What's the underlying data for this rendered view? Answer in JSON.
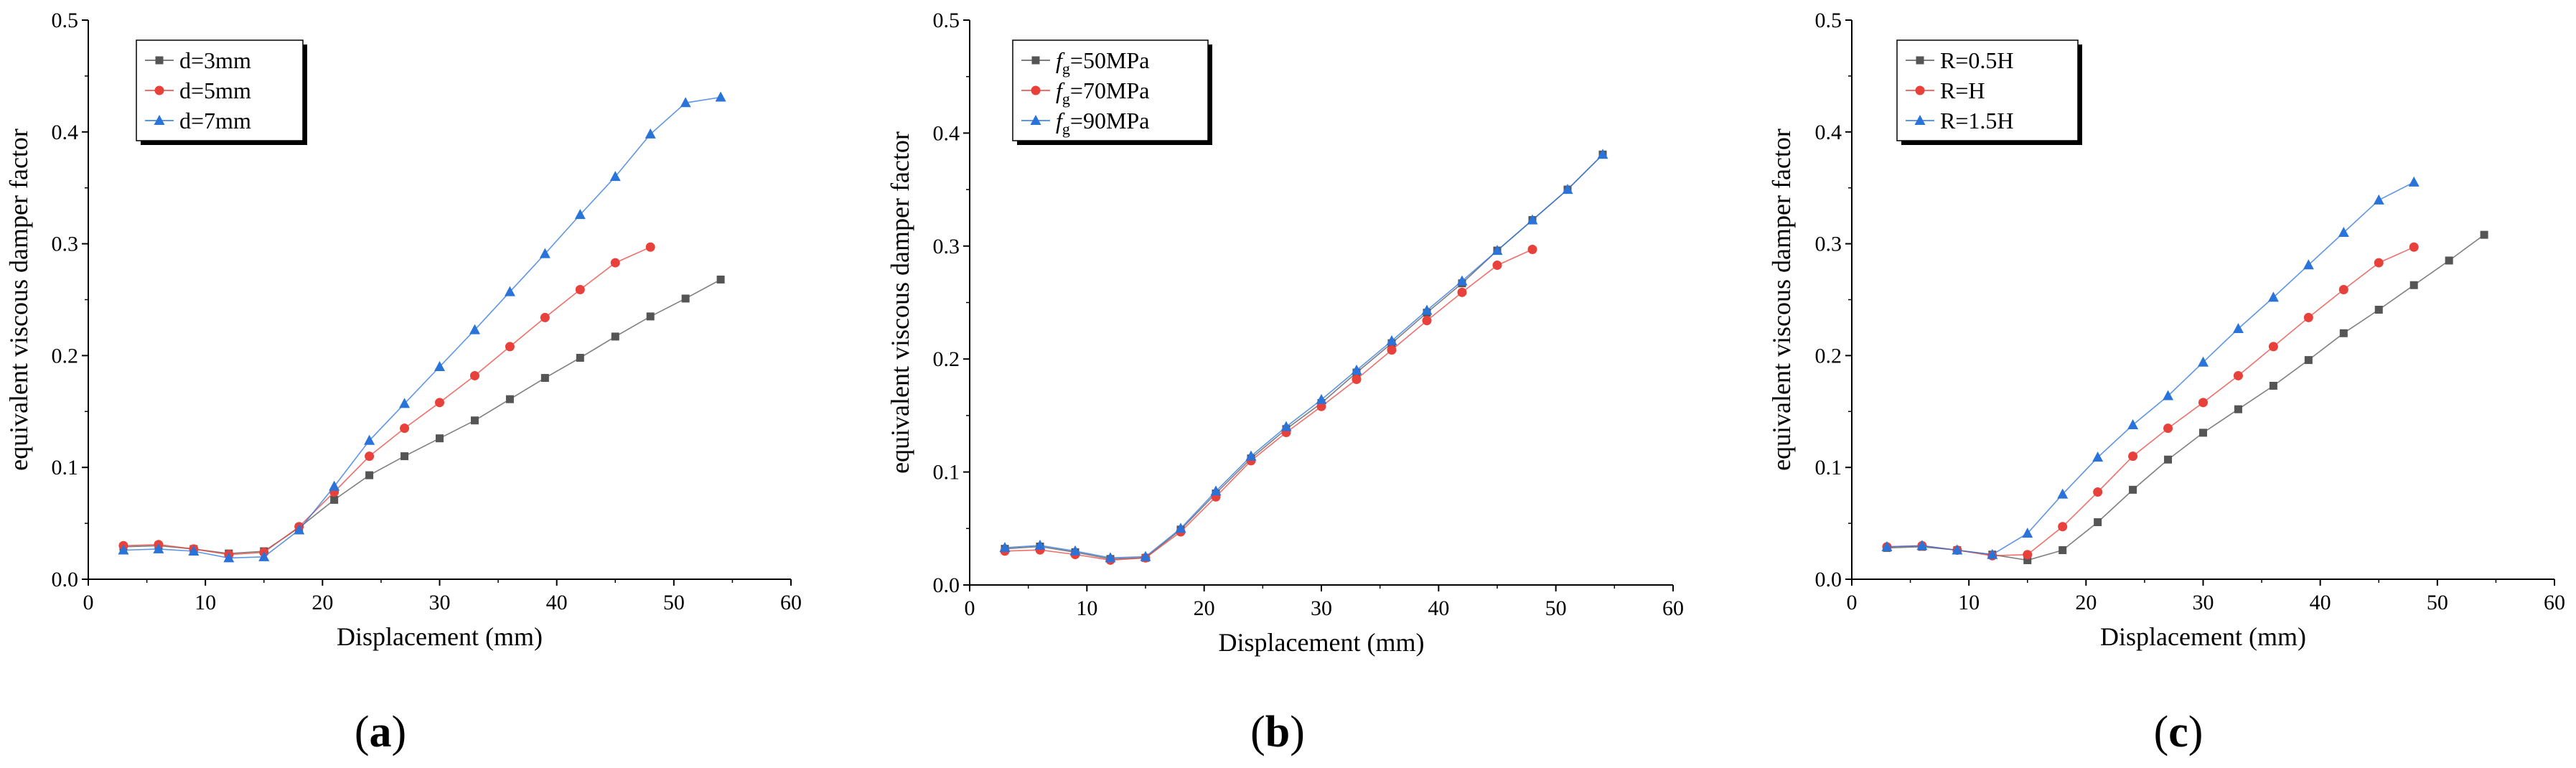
{
  "colors": {
    "black_series": "#555555",
    "red_series": "#e8413c",
    "blue_series": "#2a73d9",
    "axis": "#000000"
  },
  "chart_data": [
    {
      "type": "line",
      "panel_label": {
        "open": "(",
        "letter": "a",
        "close": ")"
      },
      "title": "",
      "xlabel": "Displacement (mm)",
      "ylabel": "equivalent viscous damper factor",
      "xlim": [
        0,
        60
      ],
      "ylim": [
        0,
        0.5
      ],
      "xticks": [
        0,
        10,
        20,
        30,
        40,
        50,
        60
      ],
      "yticks": [
        0.0,
        0.1,
        0.2,
        0.3,
        0.4,
        0.5
      ],
      "xtick_labels": [
        "0",
        "10",
        "20",
        "30",
        "40",
        "50",
        "60"
      ],
      "ytick_labels": [
        "0.0",
        "0.1",
        "0.2",
        "0.3",
        "0.4",
        "0.5"
      ],
      "grid": false,
      "legend_position": "top-left",
      "series": [
        {
          "name": "d=3mm",
          "color": "#555555",
          "marker": "square",
          "x": [
            3,
            6,
            9,
            12,
            15,
            18,
            21,
            24,
            27,
            30,
            33,
            36,
            39,
            42,
            45,
            48,
            51,
            54
          ],
          "y": [
            0.029,
            0.03,
            0.027,
            0.023,
            0.025,
            0.046,
            0.071,
            0.093,
            0.11,
            0.126,
            0.142,
            0.161,
            0.18,
            0.198,
            0.217,
            0.235,
            0.251,
            0.268
          ]
        },
        {
          "name": "d=5mm",
          "color": "#e8413c",
          "marker": "circle",
          "x": [
            3,
            6,
            9,
            12,
            15,
            18,
            21,
            24,
            27,
            30,
            33,
            36,
            39,
            42,
            45,
            48
          ],
          "y": [
            0.03,
            0.031,
            0.027,
            0.022,
            0.024,
            0.047,
            0.078,
            0.11,
            0.135,
            0.158,
            0.182,
            0.208,
            0.234,
            0.259,
            0.283,
            0.297
          ]
        },
        {
          "name": "d=7mm",
          "color": "#2a73d9",
          "marker": "triangle",
          "x": [
            3,
            6,
            9,
            12,
            15,
            18,
            21,
            24,
            27,
            30,
            33,
            36,
            39,
            42,
            45,
            48,
            51,
            54
          ],
          "y": [
            0.026,
            0.027,
            0.025,
            0.019,
            0.02,
            0.044,
            0.083,
            0.124,
            0.157,
            0.19,
            0.223,
            0.257,
            0.291,
            0.326,
            0.36,
            0.398,
            0.426,
            0.431
          ]
        }
      ]
    },
    {
      "type": "line",
      "panel_label": {
        "open": "(",
        "letter": "b",
        "close": ")"
      },
      "title": "",
      "xlabel": "Displacement (mm)",
      "ylabel": "equivalent viscous damper factor",
      "xlim": [
        0,
        60
      ],
      "ylim": [
        0,
        0.5
      ],
      "xticks": [
        0,
        10,
        20,
        30,
        40,
        50,
        60
      ],
      "yticks": [
        0.0,
        0.1,
        0.2,
        0.3,
        0.4,
        0.5
      ],
      "xtick_labels": [
        "0",
        "10",
        "20",
        "30",
        "40",
        "50",
        "60"
      ],
      "ytick_labels": [
        "0.0",
        "0.1",
        "0.2",
        "0.3",
        "0.4",
        "0.5"
      ],
      "grid": false,
      "legend_position": "top-left",
      "series": [
        {
          "name": "fg=50MPa",
          "legend_main": "f",
          "legend_sub": "g",
          "legend_rest": "=50MPa",
          "color": "#555555",
          "marker": "square",
          "x": [
            3,
            6,
            9,
            12,
            15,
            18,
            21,
            24,
            27,
            30,
            33,
            36,
            39,
            42,
            45,
            48,
            51,
            54
          ],
          "y": [
            0.032,
            0.034,
            0.029,
            0.023,
            0.024,
            0.049,
            0.081,
            0.112,
            0.138,
            0.161,
            0.188,
            0.214,
            0.241,
            0.267,
            0.296,
            0.323,
            0.35,
            0.381
          ]
        },
        {
          "name": "fg=70MPa",
          "legend_main": "f",
          "legend_sub": "g",
          "legend_rest": "=70MPa",
          "color": "#e8413c",
          "marker": "circle",
          "x": [
            3,
            6,
            9,
            12,
            15,
            18,
            21,
            24,
            27,
            30,
            33,
            36,
            39,
            42,
            45,
            48
          ],
          "y": [
            0.03,
            0.031,
            0.027,
            0.022,
            0.024,
            0.047,
            0.078,
            0.11,
            0.135,
            0.158,
            0.182,
            0.208,
            0.234,
            0.259,
            0.283,
            0.297
          ]
        },
        {
          "name": "fg=90MPa",
          "legend_main": "f",
          "legend_sub": "g",
          "legend_rest": "=90MPa",
          "color": "#2a73d9",
          "marker": "triangle",
          "x": [
            3,
            6,
            9,
            12,
            15,
            18,
            21,
            24,
            27,
            30,
            33,
            36,
            39,
            42,
            45,
            48,
            51,
            54
          ],
          "y": [
            0.033,
            0.035,
            0.03,
            0.024,
            0.025,
            0.05,
            0.083,
            0.114,
            0.14,
            0.164,
            0.19,
            0.216,
            0.243,
            0.269,
            0.296,
            0.323,
            0.35,
            0.381
          ]
        }
      ]
    },
    {
      "type": "line",
      "panel_label": {
        "open": "(",
        "letter": "c",
        "close": ")"
      },
      "title": "",
      "xlabel": "Displacement (mm)",
      "ylabel": "equivalent viscous damper factor",
      "xlim": [
        0,
        60
      ],
      "ylim": [
        0,
        0.5
      ],
      "xticks": [
        0,
        10,
        20,
        30,
        40,
        50,
        60
      ],
      "yticks": [
        0.0,
        0.1,
        0.2,
        0.3,
        0.4,
        0.5
      ],
      "xtick_labels": [
        "0",
        "10",
        "20",
        "30",
        "40",
        "50",
        "60"
      ],
      "ytick_labels": [
        "0.0",
        "0.1",
        "0.2",
        "0.3",
        "0.4",
        "0.5"
      ],
      "grid": false,
      "legend_position": "top-left",
      "series": [
        {
          "name": "R=0.5H",
          "color": "#555555",
          "marker": "square",
          "x": [
            3,
            6,
            9,
            12,
            15,
            18,
            21,
            24,
            27,
            30,
            33,
            36,
            39,
            42,
            45,
            48,
            51,
            54
          ],
          "y": [
            0.028,
            0.029,
            0.026,
            0.022,
            0.017,
            0.026,
            0.051,
            0.08,
            0.107,
            0.131,
            0.152,
            0.173,
            0.196,
            0.22,
            0.241,
            0.263,
            0.285,
            0.308
          ]
        },
        {
          "name": "R=H",
          "color": "#e8413c",
          "marker": "circle",
          "x": [
            3,
            6,
            9,
            12,
            15,
            18,
            21,
            24,
            27,
            30,
            33,
            36,
            39,
            42,
            45,
            48
          ],
          "y": [
            0.029,
            0.03,
            0.026,
            0.021,
            0.022,
            0.047,
            0.078,
            0.11,
            0.135,
            0.158,
            0.182,
            0.208,
            0.234,
            0.259,
            0.283,
            0.297
          ]
        },
        {
          "name": "R=1.5H",
          "color": "#2a73d9",
          "marker": "triangle",
          "x": [
            3,
            6,
            9,
            12,
            15,
            18,
            21,
            24,
            27,
            30,
            33,
            36,
            39,
            42,
            45,
            48
          ],
          "y": [
            0.029,
            0.03,
            0.026,
            0.022,
            0.041,
            0.076,
            0.109,
            0.138,
            0.164,
            0.194,
            0.224,
            0.252,
            0.281,
            0.31,
            0.339,
            0.355
          ]
        }
      ]
    }
  ]
}
